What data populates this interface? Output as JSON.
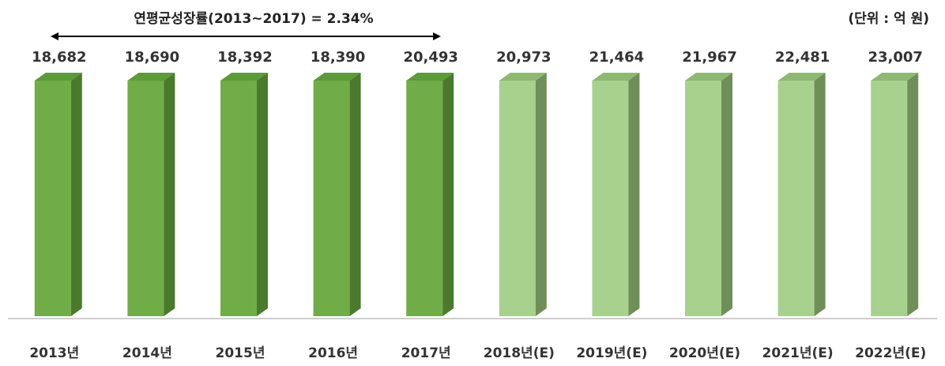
{
  "chart_data": {
    "type": "bar",
    "categories": [
      "2013년",
      "2014년",
      "2015년",
      "2016년",
      "2017년",
      "2018년(E)",
      "2019년(E)",
      "2020년(E)",
      "2021년(E)",
      "2022년(E)"
    ],
    "values": [
      18682,
      18690,
      18392,
      18390,
      20493,
      20973,
      21464,
      21967,
      22481,
      23007
    ],
    "value_labels": [
      "18,682",
      "18,690",
      "18,392",
      "18,390",
      "20,493",
      "20,973",
      "21,464",
      "21,967",
      "22,481",
      "23,007"
    ],
    "estimated": [
      false,
      false,
      false,
      false,
      false,
      true,
      true,
      true,
      true,
      true
    ],
    "annotation": "연평균성장률(2013~2017) = 2.34%",
    "unit_label": "(단위 : 억 원)",
    "title": "",
    "xlabel": "",
    "ylabel": "",
    "grid": false,
    "colors": {
      "actual_front": "#70ad47",
      "actual_top": "#5d9a3a",
      "actual_side": "#4a7a2c",
      "estimate_front": "#a9d18e",
      "estimate_top": "#8fb872",
      "estimate_side": "#6f8f58",
      "axis": "#bfbfbf"
    }
  }
}
